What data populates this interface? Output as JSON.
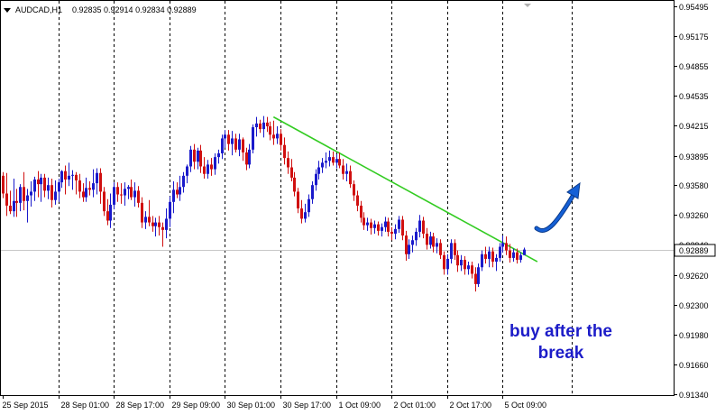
{
  "header": {
    "symbol": "AUDCAD,H1",
    "ohlc": "0.92835 0.92914 0.92834 0.92889"
  },
  "colors": {
    "bull": "#1a1acb",
    "bear": "#d01010",
    "trendline": "#33cc22",
    "arrow": "#1560d6",
    "price_line": "#c8c8c8",
    "price_tag_bg": "#ffffff",
    "grid": "#000000"
  },
  "icons": {
    "dropdown": "triangle-down-icon",
    "arrow": "curved-up-arrow-icon"
  },
  "chart_data": {
    "type": "candlestick",
    "symbol": "AUDCAD",
    "timeframe": "H1",
    "y_ticks": [
      "0.95495",
      "0.95175",
      "0.94855",
      "0.94535",
      "0.94215",
      "0.93895",
      "0.93580",
      "0.93260",
      "0.92940",
      "0.92620",
      "0.92300",
      "0.91980",
      "0.91660",
      "0.91340"
    ],
    "ylim": [
      0.9129,
      0.9554
    ],
    "x_ticks": [
      "25 Sep 2015",
      "28 Sep 01:00",
      "28 Sep 17:00",
      "29 Sep 09:00",
      "30 Sep 01:00",
      "30 Sep 17:00",
      "1 Oct 09:00",
      "2 Oct 01:00",
      "2 Oct 17:00",
      "5 Oct 09:00"
    ],
    "grid_vertical": "dashed",
    "current_price": "0.92889",
    "trendline": {
      "from": {
        "bar": 78,
        "price": 0.9431
      },
      "to": {
        "bar": 154,
        "price": 0.9276
      }
    },
    "annotation": "buy after the\nbreak",
    "ohlc": [
      [
        0.9368,
        0.9372,
        0.9344,
        0.9349
      ],
      [
        0.9349,
        0.9371,
        0.9325,
        0.9336
      ],
      [
        0.9336,
        0.9352,
        0.9327,
        0.933
      ],
      [
        0.933,
        0.9365,
        0.9324,
        0.9341
      ],
      [
        0.9341,
        0.9354,
        0.9324,
        0.9339
      ],
      [
        0.9339,
        0.9359,
        0.933,
        0.9356
      ],
      [
        0.9356,
        0.9372,
        0.9331,
        0.9341
      ],
      [
        0.9341,
        0.9354,
        0.9318,
        0.9347
      ],
      [
        0.9347,
        0.9362,
        0.9335,
        0.9351
      ],
      [
        0.9351,
        0.9367,
        0.9341,
        0.9364
      ],
      [
        0.9364,
        0.9373,
        0.9345,
        0.9359
      ],
      [
        0.9359,
        0.937,
        0.934,
        0.9366
      ],
      [
        0.9366,
        0.937,
        0.9345,
        0.9352
      ],
      [
        0.9352,
        0.9366,
        0.9343,
        0.9358
      ],
      [
        0.9358,
        0.9365,
        0.9334,
        0.9342
      ],
      [
        0.9342,
        0.9363,
        0.9337,
        0.9351
      ],
      [
        0.9351,
        0.9365,
        0.934,
        0.9361
      ],
      [
        0.9361,
        0.9374,
        0.9355,
        0.9373
      ],
      [
        0.9373,
        0.9379,
        0.9348,
        0.9364
      ],
      [
        0.9364,
        0.9382,
        0.9357,
        0.9368
      ],
      [
        0.9368,
        0.9374,
        0.9353,
        0.9369
      ],
      [
        0.9369,
        0.9372,
        0.9348,
        0.9363
      ],
      [
        0.9363,
        0.937,
        0.9344,
        0.9351
      ],
      [
        0.9351,
        0.936,
        0.934,
        0.9345
      ],
      [
        0.9345,
        0.9366,
        0.934,
        0.9355
      ],
      [
        0.9355,
        0.9362,
        0.9347,
        0.9353
      ],
      [
        0.9353,
        0.9375,
        0.9345,
        0.936
      ],
      [
        0.936,
        0.9376,
        0.9348,
        0.9371
      ],
      [
        0.9371,
        0.9376,
        0.9338,
        0.9351
      ],
      [
        0.9351,
        0.9356,
        0.9325,
        0.933
      ],
      [
        0.933,
        0.9343,
        0.9315,
        0.932
      ],
      [
        0.932,
        0.9349,
        0.9312,
        0.9337
      ],
      [
        0.9337,
        0.9361,
        0.9332,
        0.9356
      ],
      [
        0.9356,
        0.9361,
        0.934,
        0.9348
      ],
      [
        0.9348,
        0.936,
        0.9338,
        0.9347
      ],
      [
        0.9347,
        0.9361,
        0.9336,
        0.9354
      ],
      [
        0.9354,
        0.9358,
        0.9343,
        0.9356
      ],
      [
        0.9356,
        0.9364,
        0.9342,
        0.9345
      ],
      [
        0.9345,
        0.9361,
        0.9335,
        0.9352
      ],
      [
        0.9352,
        0.9357,
        0.9334,
        0.9339
      ],
      [
        0.9339,
        0.9345,
        0.9312,
        0.9318
      ],
      [
        0.9318,
        0.933,
        0.9311,
        0.9324
      ],
      [
        0.9324,
        0.9342,
        0.9314,
        0.9318
      ],
      [
        0.9318,
        0.9325,
        0.9308,
        0.9314
      ],
      [
        0.9314,
        0.9323,
        0.9303,
        0.9318
      ],
      [
        0.9318,
        0.9325,
        0.9304,
        0.9313
      ],
      [
        0.9313,
        0.9318,
        0.9292,
        0.931
      ],
      [
        0.931,
        0.9333,
        0.9301,
        0.9322
      ],
      [
        0.9322,
        0.9346,
        0.9313,
        0.934
      ],
      [
        0.934,
        0.9362,
        0.9328,
        0.9353
      ],
      [
        0.9353,
        0.9361,
        0.9344,
        0.9348
      ],
      [
        0.9348,
        0.9368,
        0.9341,
        0.9356
      ],
      [
        0.9356,
        0.9372,
        0.935,
        0.9368
      ],
      [
        0.9368,
        0.938,
        0.936,
        0.9378
      ],
      [
        0.9378,
        0.94,
        0.9372,
        0.9396
      ],
      [
        0.9396,
        0.9402,
        0.9375,
        0.9383
      ],
      [
        0.9383,
        0.9398,
        0.9375,
        0.9395
      ],
      [
        0.9395,
        0.9401,
        0.9371,
        0.9378
      ],
      [
        0.9378,
        0.9388,
        0.9365,
        0.937
      ],
      [
        0.937,
        0.9385,
        0.9365,
        0.938
      ],
      [
        0.938,
        0.9387,
        0.9368,
        0.9375
      ],
      [
        0.9375,
        0.9392,
        0.9369,
        0.9388
      ],
      [
        0.9388,
        0.9396,
        0.9381,
        0.9392
      ],
      [
        0.9392,
        0.9412,
        0.9386,
        0.9408
      ],
      [
        0.9408,
        0.9417,
        0.9398,
        0.9412
      ],
      [
        0.9412,
        0.9417,
        0.9395,
        0.9402
      ],
      [
        0.9402,
        0.9416,
        0.939,
        0.9408
      ],
      [
        0.9408,
        0.9413,
        0.9393,
        0.9396
      ],
      [
        0.9396,
        0.9413,
        0.9389,
        0.9407
      ],
      [
        0.9407,
        0.9409,
        0.9384,
        0.9393
      ],
      [
        0.9393,
        0.9398,
        0.9374,
        0.938
      ],
      [
        0.938,
        0.9402,
        0.9376,
        0.9396
      ],
      [
        0.9396,
        0.9423,
        0.9392,
        0.942
      ],
      [
        0.942,
        0.9431,
        0.941,
        0.9424
      ],
      [
        0.9424,
        0.9428,
        0.9414,
        0.9418
      ],
      [
        0.9418,
        0.9432,
        0.9409,
        0.9425
      ],
      [
        0.9425,
        0.9431,
        0.9415,
        0.9421
      ],
      [
        0.9421,
        0.9426,
        0.9406,
        0.9412
      ],
      [
        0.9412,
        0.9427,
        0.9401,
        0.9408
      ],
      [
        0.9408,
        0.9421,
        0.9402,
        0.9413
      ],
      [
        0.9413,
        0.9418,
        0.9395,
        0.9401
      ],
      [
        0.9401,
        0.9409,
        0.938,
        0.9387
      ],
      [
        0.9387,
        0.9394,
        0.937,
        0.9377
      ],
      [
        0.9377,
        0.9386,
        0.9362,
        0.9366
      ],
      [
        0.9366,
        0.9372,
        0.9346,
        0.9351
      ],
      [
        0.9351,
        0.9355,
        0.9328,
        0.9333
      ],
      [
        0.9333,
        0.9342,
        0.9317,
        0.9322
      ],
      [
        0.9322,
        0.9338,
        0.9318,
        0.9329
      ],
      [
        0.9329,
        0.9348,
        0.9324,
        0.9343
      ],
      [
        0.9343,
        0.9362,
        0.9338,
        0.9358
      ],
      [
        0.9358,
        0.9375,
        0.9352,
        0.937
      ],
      [
        0.937,
        0.9384,
        0.9364,
        0.9377
      ],
      [
        0.9377,
        0.9387,
        0.9371,
        0.9382
      ],
      [
        0.9382,
        0.9393,
        0.9376,
        0.9384
      ],
      [
        0.9384,
        0.9395,
        0.9378,
        0.9388
      ],
      [
        0.9388,
        0.9394,
        0.9379,
        0.9382
      ],
      [
        0.9382,
        0.9391,
        0.9376,
        0.9386
      ],
      [
        0.9386,
        0.9393,
        0.9376,
        0.9379
      ],
      [
        0.9379,
        0.9386,
        0.9364,
        0.937
      ],
      [
        0.937,
        0.9381,
        0.9362,
        0.9373
      ],
      [
        0.9373,
        0.9379,
        0.9355,
        0.9359
      ],
      [
        0.9359,
        0.9363,
        0.9341,
        0.9347
      ],
      [
        0.9347,
        0.9352,
        0.933,
        0.9336
      ],
      [
        0.9336,
        0.9341,
        0.9318,
        0.9323
      ],
      [
        0.9323,
        0.9329,
        0.931,
        0.9315
      ],
      [
        0.9315,
        0.9323,
        0.9309,
        0.9318
      ],
      [
        0.9318,
        0.9322,
        0.9305,
        0.9312
      ],
      [
        0.9312,
        0.932,
        0.9306,
        0.9316
      ],
      [
        0.9316,
        0.9319,
        0.9304,
        0.9309
      ],
      [
        0.9309,
        0.9317,
        0.9303,
        0.9313
      ],
      [
        0.9313,
        0.9324,
        0.9308,
        0.9319
      ],
      [
        0.9319,
        0.9323,
        0.9303,
        0.9308
      ],
      [
        0.9308,
        0.9313,
        0.9299,
        0.9306
      ],
      [
        0.9306,
        0.9316,
        0.93,
        0.9311
      ],
      [
        0.9311,
        0.9325,
        0.9307,
        0.9321
      ],
      [
        0.9321,
        0.9325,
        0.9299,
        0.9304
      ],
      [
        0.9304,
        0.9309,
        0.9277,
        0.9284
      ],
      [
        0.9284,
        0.93,
        0.9279,
        0.9294
      ],
      [
        0.9294,
        0.9304,
        0.9286,
        0.9299
      ],
      [
        0.9299,
        0.9312,
        0.9293,
        0.9308
      ],
      [
        0.9308,
        0.9326,
        0.9302,
        0.932
      ],
      [
        0.932,
        0.9324,
        0.9301,
        0.9306
      ],
      [
        0.9306,
        0.9312,
        0.9289,
        0.9294
      ],
      [
        0.9294,
        0.9308,
        0.929,
        0.9303
      ],
      [
        0.9303,
        0.9307,
        0.9286,
        0.9292
      ],
      [
        0.9292,
        0.9301,
        0.9285,
        0.9296
      ],
      [
        0.9296,
        0.93,
        0.9279,
        0.9283
      ],
      [
        0.9283,
        0.9287,
        0.9262,
        0.9268
      ],
      [
        0.9268,
        0.9284,
        0.9262,
        0.9279
      ],
      [
        0.9279,
        0.93,
        0.9274,
        0.9296
      ],
      [
        0.9296,
        0.93,
        0.9278,
        0.9283
      ],
      [
        0.9283,
        0.9288,
        0.9265,
        0.9272
      ],
      [
        0.9272,
        0.9283,
        0.9266,
        0.9278
      ],
      [
        0.9278,
        0.9282,
        0.9262,
        0.9268
      ],
      [
        0.9268,
        0.9276,
        0.9262,
        0.9272
      ],
      [
        0.9272,
        0.9276,
        0.9258,
        0.9263
      ],
      [
        0.9263,
        0.927,
        0.9244,
        0.9252
      ],
      [
        0.9252,
        0.9274,
        0.9249,
        0.927
      ],
      [
        0.927,
        0.9288,
        0.9266,
        0.9284
      ],
      [
        0.9284,
        0.9292,
        0.9274,
        0.9279
      ],
      [
        0.9279,
        0.9292,
        0.927,
        0.9287
      ],
      [
        0.9287,
        0.9291,
        0.927,
        0.9276
      ],
      [
        0.9276,
        0.9284,
        0.9266,
        0.928
      ],
      [
        0.928,
        0.9296,
        0.9276,
        0.9292
      ],
      [
        0.9292,
        0.9304,
        0.9286,
        0.9296
      ],
      [
        0.9296,
        0.9303,
        0.9283,
        0.9288
      ],
      [
        0.9288,
        0.9295,
        0.9275,
        0.928
      ],
      [
        0.928,
        0.929,
        0.9276,
        0.9286
      ],
      [
        0.9286,
        0.929,
        0.9274,
        0.9278
      ],
      [
        0.9278,
        0.9286,
        0.9275,
        0.9283
      ],
      [
        0.9283,
        0.9291,
        0.9283,
        0.9289
      ]
    ]
  }
}
